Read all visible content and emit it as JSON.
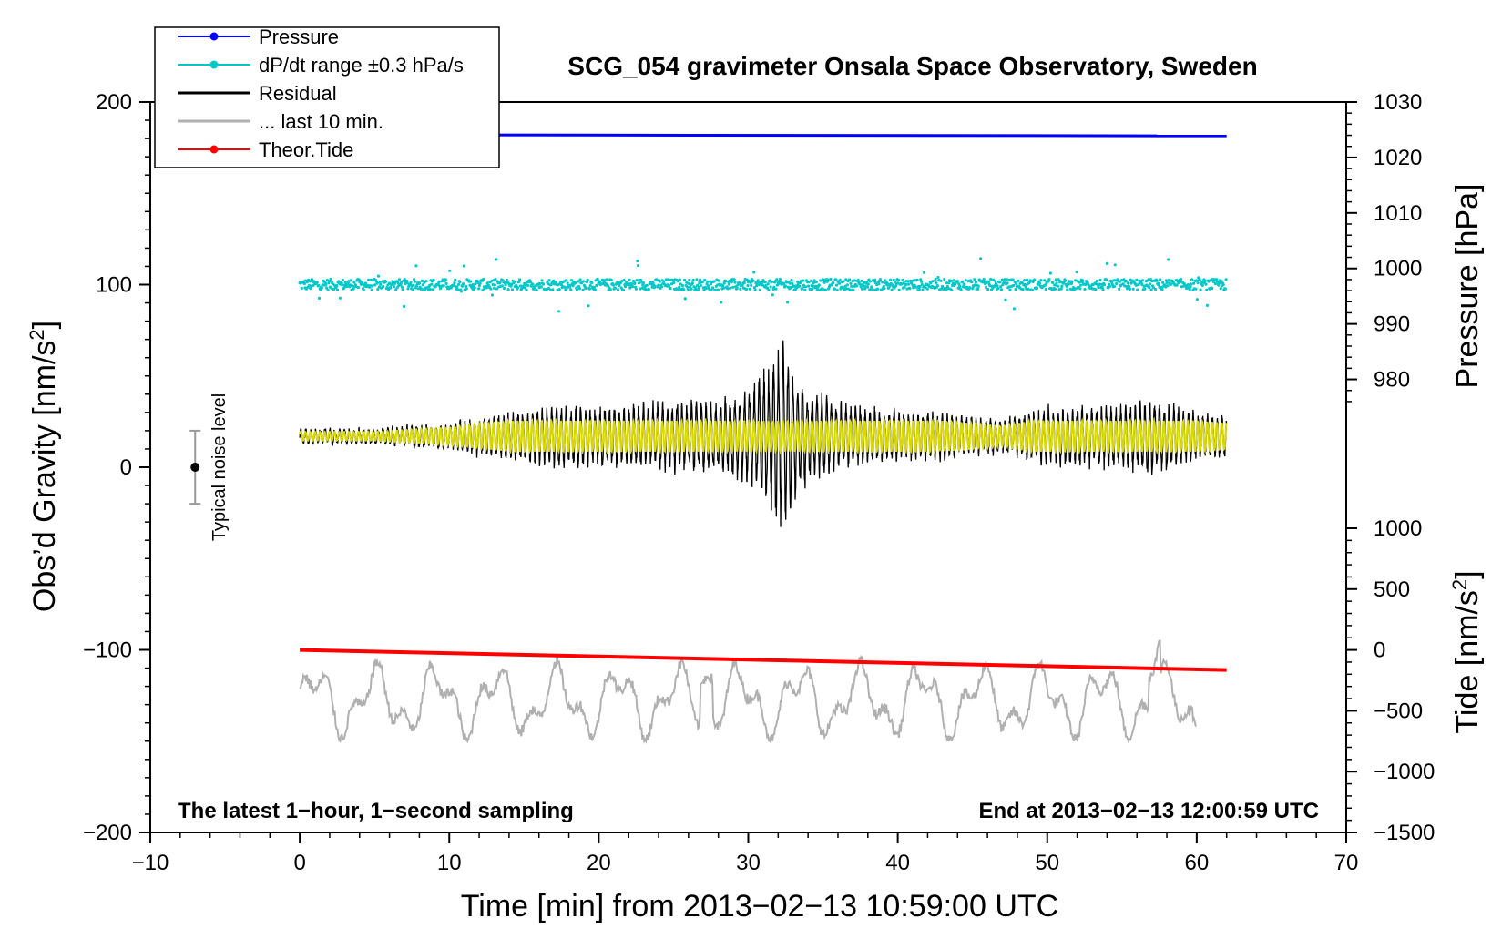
{
  "chart_data": {
    "type": "line",
    "title": "SCG_054 gravimeter Onsala Space Observatory, Sweden",
    "xlabel": "Time [min] from 2013−02−13 10:59:00 UTC",
    "ylabel_left_main": "Obs’d Gravity [nm/s",
    "ylabel_left_sup": "2",
    "ylabel_left_end": "]",
    "ylabel_right_pressure": "Pressure [hPa]",
    "ylabel_right_tide_main": "Tide [nm/s",
    "ylabel_right_tide_sup": "2",
    "ylabel_right_tide_end": "]",
    "xlim": [
      -10,
      70
    ],
    "ylim_left": [
      -200,
      200
    ],
    "ylim_right_pressure": [
      975,
      1030
    ],
    "ylim_right_tide": [
      -1500,
      1000
    ],
    "x_ticks": [
      "−10",
      "0",
      "10",
      "20",
      "30",
      "40",
      "50",
      "60",
      "70"
    ],
    "x_tick_values": [
      -10,
      0,
      10,
      20,
      30,
      40,
      50,
      60,
      70
    ],
    "y_ticks_left": [
      "−200",
      "−100",
      "0",
      "100",
      "200"
    ],
    "y_tick_values_left": [
      -200,
      -100,
      0,
      100,
      200
    ],
    "y_ticks_pressure": [
      "980",
      "990",
      "1000",
      "1010",
      "1020",
      "1030"
    ],
    "y_tick_values_pressure": [
      980,
      990,
      1000,
      1010,
      1020,
      1030
    ],
    "y_ticks_tide": [
      "−1500",
      "−1000",
      "−500",
      "0",
      "500",
      "1000"
    ],
    "y_tick_values_tide": [
      -1500,
      -1000,
      -500,
      0,
      500,
      1000
    ],
    "legend": [
      {
        "label": "Pressure",
        "color": "#0000ff",
        "marker": true,
        "width": 1
      },
      {
        "label": "dP/dt range ±0.3 hPa/s",
        "color": "#00c8c8",
        "marker": true,
        "width": 1
      },
      {
        "label": "Residual",
        "color": "#000000",
        "marker": false,
        "width": 2
      },
      {
        "label": "... last 10 min.",
        "color": "#b0b0b0",
        "marker": false,
        "width": 2
      },
      {
        "label": "Theor.Tide",
        "color": "#ff0000",
        "marker": true,
        "width": 1
      }
    ],
    "annotation_left": "The latest 1−hour, 1−second sampling",
    "annotation_right": "End at 2013−02−13 12:00:59 UTC",
    "noise_label": "Typical noise level",
    "noise_bar": {
      "x": -7,
      "center": 0,
      "half_range": 20
    },
    "series": [
      {
        "name": "Pressure",
        "axis": "pressure",
        "color": "#0000ff",
        "x": [
          0,
          62
        ],
        "values": [
          1024.1,
          1023.9
        ]
      },
      {
        "name": "dP/dt range ±0.3 hPa/s",
        "axis": "left",
        "color": "#00c8c8",
        "center": 100,
        "spread": 3,
        "outlier_max": 15,
        "x_range": [
          0,
          62
        ]
      },
      {
        "name": "Residual",
        "axis": "left",
        "color": "#000000",
        "center": 17,
        "x_range": [
          0,
          62
        ],
        "envelope": {
          "x": [
            0,
            5,
            10,
            14,
            17,
            20,
            24,
            28,
            30,
            31,
            32.3,
            33,
            34,
            36,
            40,
            44,
            47,
            50,
            55,
            57,
            60,
            62
          ],
          "half_amplitude": [
            4,
            4,
            8,
            14,
            18,
            17,
            20,
            22,
            26,
            38,
            55,
            40,
            28,
            20,
            15,
            13,
            9,
            17,
            18,
            22,
            14,
            12
          ]
        }
      },
      {
        "name": "... last 10 min.",
        "axis": "left",
        "color": "#b0b0b0",
        "x_range": [
          0,
          60
        ],
        "center": -128,
        "min": -150,
        "max": -95
      },
      {
        "name": "Yellow filtered residual",
        "axis": "left",
        "color": "#d8d800",
        "center": 17,
        "x_range": [
          0,
          62
        ]
      },
      {
        "name": "Theor.Tide",
        "axis": "tide",
        "color": "#ff0000",
        "x": [
          0,
          62
        ],
        "values": [
          0,
          -165
        ]
      }
    ]
  }
}
